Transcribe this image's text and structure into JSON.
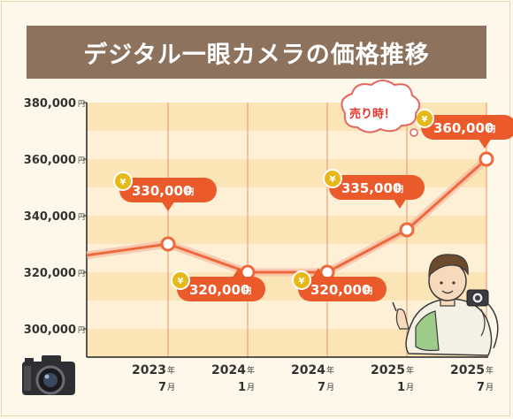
{
  "title": "デジタル一眼カメラの価格推移",
  "colors": {
    "title_bg": "#8d735e",
    "plot_band_dark": "#fbe4b6",
    "plot_band_light": "#fdf0d6",
    "line": "#ee6a3d",
    "line_glow": "#f7b9a2",
    "callout": "#ea5a2b",
    "coin": "#e6b918"
  },
  "sold_label": "売り時！",
  "chart_data": {
    "type": "line",
    "y_unit": "円",
    "ylim": [
      290000,
      380000
    ],
    "ytick_values": [
      300000,
      320000,
      340000,
      360000,
      380000
    ],
    "ytick_labels": [
      "300,000",
      "320,000",
      "340,000",
      "360,000",
      "380,000"
    ],
    "x_labels": [
      {
        "year": "2023",
        "month": "7",
        "year_suffix": "年",
        "month_suffix": "月"
      },
      {
        "year": "2024",
        "month": "1",
        "year_suffix": "年",
        "month_suffix": "月"
      },
      {
        "year": "2024",
        "month": "7",
        "year_suffix": "年",
        "month_suffix": "月"
      },
      {
        "year": "2025",
        "month": "1",
        "year_suffix": "年",
        "month_suffix": "月"
      },
      {
        "year": "2025",
        "month": "7",
        "year_suffix": "年",
        "month_suffix": "月"
      }
    ],
    "series": [
      {
        "values": [
          330000,
          320000,
          320000,
          335000,
          360000
        ]
      }
    ],
    "start_value": 326000,
    "data_labels": [
      {
        "value_text": "330,000",
        "unit": "円"
      },
      {
        "value_text": "320,000",
        "unit": "円"
      },
      {
        "value_text": "320,000",
        "unit": "円"
      },
      {
        "value_text": "335,000",
        "unit": "円"
      },
      {
        "value_text": "360,000",
        "unit": "円"
      }
    ]
  }
}
